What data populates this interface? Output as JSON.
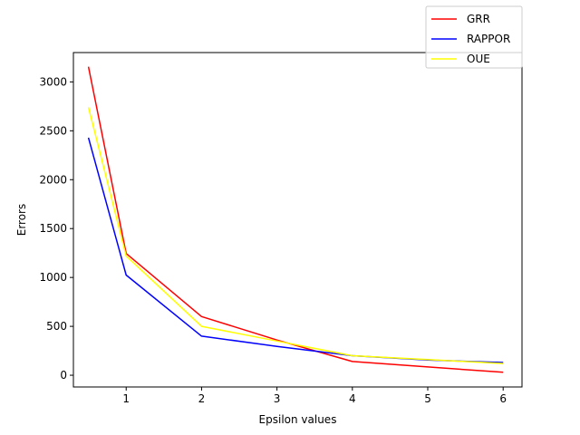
{
  "chart_data": {
    "type": "line",
    "title": "",
    "xlabel": "Epsilon values",
    "ylabel": "Errors",
    "xlim": [
      0.3,
      6.25
    ],
    "ylim": [
      -120,
      3300
    ],
    "x": [
      0.5,
      1,
      2,
      3,
      4,
      5,
      6
    ],
    "xticks": [
      1,
      2,
      3,
      4,
      5,
      6
    ],
    "yticks": [
      0,
      500,
      1000,
      1500,
      2000,
      2500,
      3000
    ],
    "grid": false,
    "legend_position": "top-right, above axes",
    "series": [
      {
        "name": "GRR",
        "color": "#ff0000",
        "values": [
          3155,
          1245,
          600,
          360,
          140,
          85,
          30
        ]
      },
      {
        "name": "RAPPOR",
        "color": "#0000ff",
        "values": [
          2430,
          1025,
          400,
          295,
          200,
          155,
          130
        ]
      },
      {
        "name": "OUE",
        "color": "#ffff00",
        "values": [
          2740,
          1220,
          500,
          350,
          200,
          160,
          120
        ]
      }
    ]
  }
}
